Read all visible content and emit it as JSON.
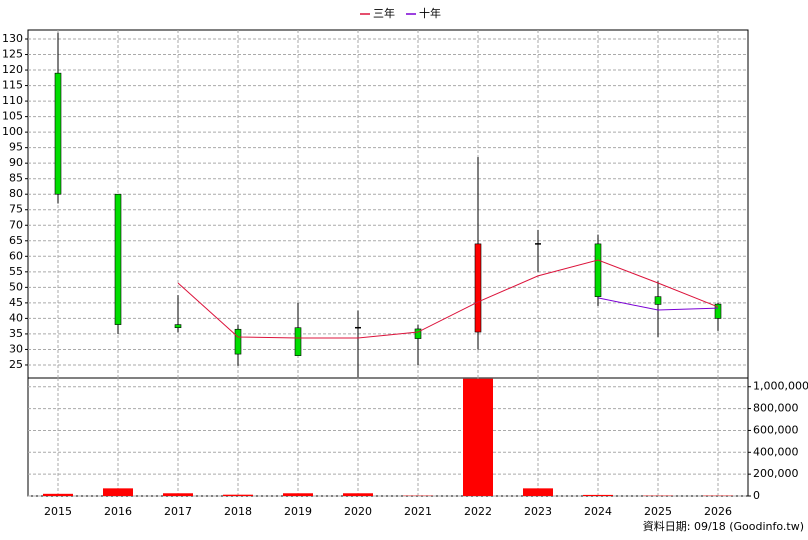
{
  "chart_data": {
    "type": "candlestick",
    "categories": [
      "2015",
      "2016",
      "2017",
      "2018",
      "2019",
      "2020",
      "2021",
      "2022",
      "2023",
      "2024",
      "2025",
      "2026"
    ],
    "open": [
      119,
      80,
      38,
      36.5,
      37,
      37,
      36.6,
      35.6,
      64,
      64,
      47,
      44.6
    ],
    "high": [
      132,
      80,
      47.5,
      38,
      45,
      42.5,
      38,
      92,
      68.5,
      67,
      52,
      45
    ],
    "low": [
      77,
      35,
      35.5,
      24.7,
      28,
      21,
      25,
      30,
      55,
      44,
      34,
      36
    ],
    "close": [
      80,
      38,
      37,
      28.5,
      28,
      37,
      33.5,
      64,
      64,
      47,
      44.5,
      40
    ],
    "up_color": "#ff0000",
    "down_color": "#00dd00",
    "flat_color": "#000000",
    "series": [
      {
        "name": "三年",
        "color": "#dc143c",
        "values": [
          null,
          null,
          51.4,
          34,
          33.7,
          33.7,
          35.6,
          45.3,
          53.7,
          58.8,
          51.4,
          43.7
        ]
      },
      {
        "name": "十年",
        "color": "#7b00d4",
        "values": [
          null,
          null,
          null,
          null,
          null,
          null,
          null,
          null,
          null,
          46.6,
          42.7,
          43.3
        ]
      }
    ],
    "ylim": [
      20.8,
      132.9
    ],
    "yticks": [
      25,
      30,
      35,
      40,
      45,
      50,
      55,
      60,
      65,
      70,
      75,
      80,
      85,
      90,
      95,
      100,
      105,
      110,
      115,
      120,
      125,
      130
    ],
    "grid": true,
    "volume": {
      "color": "#ff0000",
      "values": [
        20000,
        70000,
        25000,
        12000,
        25000,
        25000,
        3000,
        1073000,
        70000,
        10000,
        3000,
        3000
      ],
      "ylim": [
        0,
        1080000
      ],
      "yticks": [
        {
          "value": 0,
          "label": "0"
        },
        {
          "value": 200000,
          "label": "200,000"
        },
        {
          "value": 400000,
          "label": "400,000"
        },
        {
          "value": 600000,
          "label": "600,000"
        },
        {
          "value": 800000,
          "label": "800,000"
        },
        {
          "value": 1000000,
          "label": "1,000,000"
        }
      ]
    },
    "footnote": "資料日期: 09/18 (Goodinfo.tw)"
  }
}
